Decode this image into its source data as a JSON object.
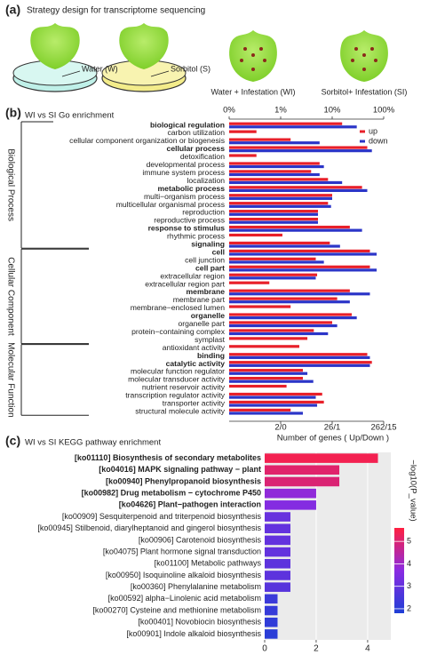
{
  "panel_a": {
    "panel": "(a)",
    "title": "Strategy design for transcriptome sequencing",
    "labels": [
      "Water (W)",
      "Sorbitol (S)",
      "Water + Infestation (WI)",
      "Sorbitol+ Infestation (SI)"
    ]
  },
  "chart_data": [
    {
      "type": "bar",
      "orientation": "horizontal",
      "panel": "(b)",
      "title": "WI vs SI Go enrichment",
      "xlabel": "Number of genes ( Up/Down )",
      "xscale": "log",
      "xlim": [
        0,
        100
      ],
      "xticks": [
        {
          "value": 0,
          "label": "0%"
        },
        {
          "value": 1,
          "label": "1%"
        },
        {
          "value": 10,
          "label": "10%"
        },
        {
          "value": 100,
          "label": "100%"
        }
      ],
      "x2ticks": [
        {
          "value": 1,
          "label": "2/0"
        },
        {
          "value": 10,
          "label": "26/1"
        },
        {
          "value": 100,
          "label": "262/15"
        }
      ],
      "legend": "top-right",
      "series": [
        {
          "name": "up",
          "color": "#e8202a"
        },
        {
          "name": "down",
          "color": "#2b35c8"
        }
      ],
      "highlight_color": "#e8202a",
      "groups": [
        {
          "name": "Biological Process",
          "categories": [
            "biological regulation",
            "carbon utilization",
            "cellular component organization or biogenesis",
            "cellular process",
            "detoxification",
            "developmental process",
            "immune system process",
            "localization",
            "metabolic process",
            "multi−organism process",
            "multicellular organismal process",
            "reproduction",
            "reproductive process",
            "response to stimulus",
            "rhythmic process",
            "signaling"
          ],
          "highlighted": [
            true,
            false,
            false,
            true,
            false,
            false,
            false,
            false,
            true,
            false,
            false,
            false,
            false,
            true,
            false,
            true
          ],
          "up": [
            15.6,
            0.53,
            1.56,
            48,
            0.53,
            5.7,
            3.9,
            8.3,
            38,
            10,
            8.3,
            5.3,
            5.3,
            22,
            1.08,
            9.0
          ],
          "down": [
            30,
            0,
            5.7,
            59,
            0,
            6.9,
            5.7,
            15.6,
            48,
            10,
            9.5,
            5.3,
            5.3,
            38,
            0,
            14.2
          ]
        },
        {
          "name": "Cellular Component",
          "categories": [
            "cell",
            "cell junction",
            "cell part",
            "extracellular region",
            "extracellular region part",
            "membrane",
            "membrane part",
            "membrane−enclosed lumen",
            "organelle",
            "organelle part",
            "protein−containing complex",
            "symplast"
          ],
          "highlighted": [
            true,
            false,
            true,
            false,
            false,
            true,
            false,
            false,
            true,
            false,
            false,
            false
          ],
          "up": [
            54,
            4.8,
            54,
            5.1,
            0.78,
            22,
            12.5,
            1.56,
            24,
            10,
            4.4,
            3.3
          ],
          "down": [
            73,
            6.9,
            73,
            4.8,
            0,
            54,
            22,
            0,
            30,
            12.5,
            8.3,
            0
          ]
        },
        {
          "name": "Molecular Function",
          "categories": [
            "antioxidant activity",
            "binding",
            "catalytic activity",
            "molecular function regulator",
            "molecular transducer activity",
            "nutrient reservoir activity",
            "transcription regulator activity",
            "transporter activity",
            "structural molecule activity"
          ],
          "highlighted": [
            false,
            true,
            true,
            false,
            false,
            false,
            false,
            false,
            false
          ],
          "up": [
            2.3,
            48,
            59,
            2.7,
            2.7,
            1.3,
            6.4,
            6.9,
            1.56
          ],
          "down": [
            0,
            54,
            54,
            3.3,
            4.3,
            0,
            4.8,
            5.1,
            2.7
          ]
        }
      ]
    },
    {
      "type": "bar",
      "orientation": "horizontal",
      "panel": "(c)",
      "title": "WI vs SI KEGG pathway enrichment",
      "categories": [
        "[ko01110] Biosynthesis of secondary metabolites",
        "[ko04016] MAPK signaling pathway − plant",
        "[ko00940] Phenylpropanoid biosynthesis",
        "[ko00982] Drug metabolism − cytochrome P450",
        "[ko04626] Plant−pathogen interaction",
        "[ko00909] Sesquiterpenoid and triterpenoid biosynthesis",
        "[ko00945] Stilbenoid, diarylheptanoid and gingerol biosynthesis",
        "[ko00906] Carotenoid biosynthesis",
        "[ko04075] Plant hormone signal transduction",
        "[ko01100] Metabolic pathways",
        "[ko00950] Isoquinoline alkaloid biosynthesis",
        "[ko00360] Phenylalanine metabolism",
        "[ko00592] alpha−Linolenic acid metabolism",
        "[ko00270] Cysteine and methionine metabolism",
        "[ko00401] Novobiocin biosynthesis",
        "[ko00901] Indole alkaloid biosynthesis"
      ],
      "highlighted": [
        true,
        true,
        true,
        true,
        true,
        false,
        false,
        false,
        false,
        false,
        false,
        false,
        false,
        false,
        false,
        false
      ],
      "highlight_color": "#e8202a",
      "values": [
        4.4,
        2.9,
        2.9,
        2.0,
        2.0,
        1.0,
        1.0,
        1.0,
        1.0,
        1.0,
        1.0,
        1.0,
        0.5,
        0.5,
        0.5,
        0.5
      ],
      "color_values": [
        5.4,
        5.1,
        5.0,
        3.8,
        3.6,
        3.1,
        3.0,
        3.0,
        3.0,
        2.9,
        2.9,
        2.8,
        2.3,
        2.2,
        2.1,
        2.0
      ],
      "xlim": [
        0,
        4.9
      ],
      "xticks": [
        0,
        2,
        4
      ],
      "grid": true,
      "colorbar": {
        "label": "−log10(P_value)",
        "lim": [
          1.8,
          5.6
        ],
        "ticks": [
          2,
          3,
          4,
          5
        ],
        "colors": [
          "#1f3fd6",
          "#8a2be2",
          "#ff2040"
        ]
      }
    }
  ]
}
